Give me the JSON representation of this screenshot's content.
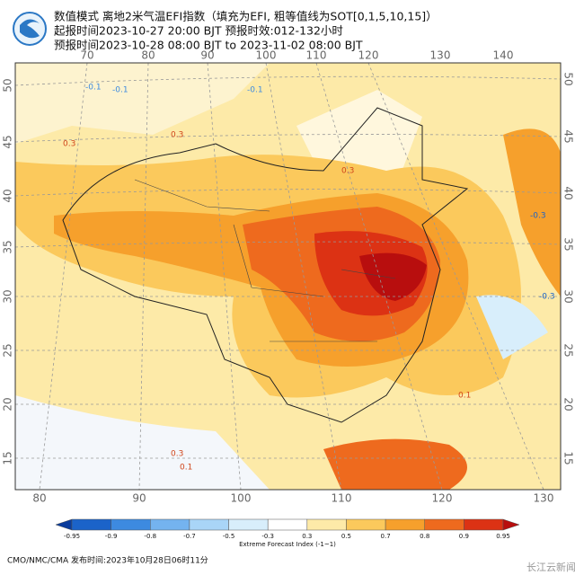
{
  "header": {
    "lines": [
      "数值模式 离地2米气温EFI指数（填充为EFI, 粗等值线为SOT[0,1,5,10,15]）",
      "起报时间2023-10-27 20:00 BJT 预报时效:012-132小时",
      "预报时间2023-10-28 08:00 BJT to 2023-11-02 08:00 BJT"
    ]
  },
  "map": {
    "top_lon_labels": [
      "70",
      "80",
      "90",
      "100",
      "110",
      "120",
      "130",
      "140"
    ],
    "bottom_lon_labels": [
      "80",
      "90",
      "100",
      "110",
      "120",
      "130"
    ],
    "left_lat_labels": [
      "50",
      "45",
      "40",
      "35",
      "30",
      "25",
      "20",
      "15"
    ],
    "right_lat_labels": [
      "50",
      "45",
      "40",
      "35",
      "30",
      "25",
      "20",
      "15"
    ],
    "contour_labels": [
      "-0.1",
      "-0.1",
      "0.3",
      "0.3",
      "0.3",
      "-0.3",
      "0.1",
      "-0.3",
      "0.3",
      "0.1",
      "-0.1"
    ]
  },
  "colorbar": {
    "labels": [
      "-0.95",
      "-0.9",
      "-0.8",
      "-0.7",
      "-0.5",
      "-0.3",
      "0.3",
      "0.5",
      "0.7",
      "0.8",
      "0.9",
      "0.95"
    ],
    "colors": [
      "#0a3c9c",
      "#1b63c9",
      "#3d8ae0",
      "#74b3ef",
      "#a9d5f7",
      "#d8eefb",
      "#ffffff",
      "#fdeaa8",
      "#fbc95c",
      "#f6a02c",
      "#ee6a1e",
      "#dc3214",
      "#b80e0e"
    ],
    "caption": "Extreme Forecast Index (-1~1)"
  },
  "footer": "CMO/NMC/CMA 发布时间:2023年10月28日06时11分",
  "watermark": "长江云新闻"
}
